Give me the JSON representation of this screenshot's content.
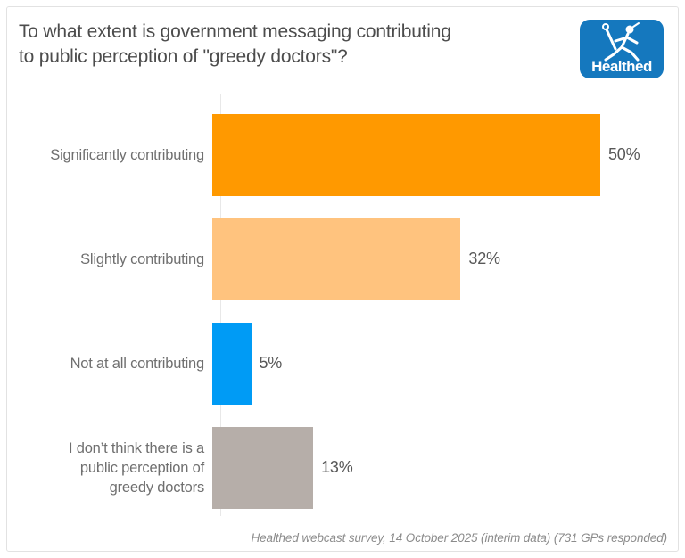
{
  "header": {
    "title_lines": [
      "To what extent is government messaging contributing",
      "to public perception of \"greedy doctors\"?"
    ]
  },
  "logo": {
    "text": "Healthed",
    "background_color": "#1578be",
    "icon": "mercury-caduceus-runner-icon"
  },
  "chart_data": {
    "type": "bar",
    "orientation": "horizontal",
    "title": "To what extent is government messaging contributing to public perception of \"greedy doctors\"?",
    "categories": [
      "Significantly contributing",
      "Slightly contributing",
      "Not at all contributing",
      "I don’t think there is a public perception of greedy doctors"
    ],
    "values": [
      50,
      32,
      5,
      13
    ],
    "value_labels": [
      "50%",
      "32%",
      "5%",
      "13%"
    ],
    "colors": [
      "#ff9900",
      "#ffc37e",
      "#009bf5",
      "#b6aea9"
    ],
    "unit": "%",
    "xlim": [
      0,
      50
    ],
    "grid": false,
    "legend": "none",
    "value_label_position": "outside-end"
  },
  "footer": {
    "source": "Healthed webcast survey, 14 October 2025 (interim data) (731 GPs responded)"
  }
}
